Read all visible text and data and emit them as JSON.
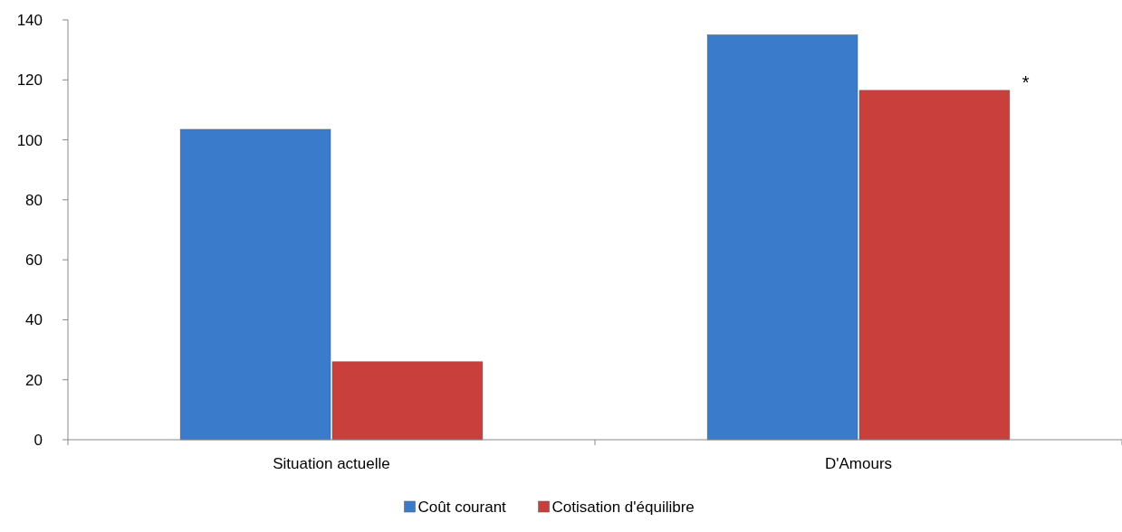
{
  "chart_data": {
    "type": "bar",
    "categories": [
      "Situation actuelle",
      "D'Amours"
    ],
    "series": [
      {
        "name": "Coût courant",
        "color": "#3b7bcc",
        "values": [
          103.5,
          135
        ]
      },
      {
        "name": "Cotisation d'équilibre",
        "color": "#c93f3c",
        "values": [
          26,
          116.5
        ]
      }
    ],
    "ylim": [
      0,
      140
    ],
    "yticks": [
      0,
      20,
      40,
      60,
      80,
      100,
      120,
      140
    ],
    "grid": false,
    "legend": "bottom",
    "annotations": [
      "*"
    ]
  }
}
